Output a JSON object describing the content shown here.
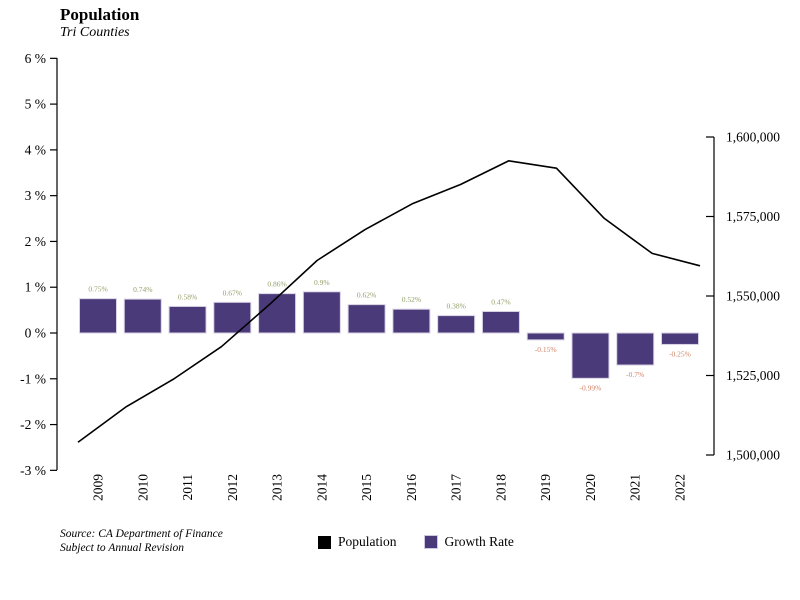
{
  "header": {
    "title": "Population",
    "subtitle": "Tri Counties"
  },
  "footer": {
    "source_line1": "Source: CA Department of Finance",
    "source_line2": "Subject to Annual Revision"
  },
  "legend": {
    "items": [
      {
        "label": "Population",
        "color": "#000000"
      },
      {
        "label": "Growth Rate",
        "color": "#4b3a7a"
      }
    ]
  },
  "chart_data": {
    "type": "combo",
    "title": "Population",
    "subtitle": "Tri Counties",
    "categories": [
      "2009",
      "2010",
      "2011",
      "2012",
      "2013",
      "2014",
      "2015",
      "2016",
      "2017",
      "2018",
      "2019",
      "2020",
      "2021",
      "2022"
    ],
    "series": [
      {
        "name": "Population",
        "type": "line",
        "axis": "right",
        "color": "#000000",
        "values": [
          1504000,
          1515100,
          1523900,
          1534100,
          1547300,
          1561200,
          1570900,
          1579100,
          1585100,
          1592500,
          1590200,
          1574400,
          1563400,
          1559500
        ]
      },
      {
        "name": "Growth Rate",
        "type": "bar",
        "axis": "left",
        "color": "#4b3a7a",
        "bar_border_color": "#d8d2e4",
        "values_pct": [
          0.75,
          0.74,
          0.58,
          0.67,
          0.86,
          0.9,
          0.62,
          0.52,
          0.38,
          0.47,
          -0.15,
          -0.99,
          -0.7,
          -0.25
        ],
        "labels": [
          "0.75%",
          "0.74%",
          "0.58%",
          "0.67%",
          "0.86%",
          "0.9%",
          "0.62%",
          "0.52%",
          "0.38%",
          "0.47%",
          "-0.15%",
          "-0.99%",
          "-0.7%",
          "-0.25%"
        ]
      }
    ],
    "left_axis": {
      "unit": "%",
      "range": [
        -3,
        6
      ],
      "tick_values": [
        6,
        5,
        4,
        3,
        2,
        1,
        0,
        -1,
        -2,
        -3
      ],
      "ticks": [
        "6 %",
        "5 %",
        "4 %",
        "3 %",
        "2 %",
        "1 %",
        "0 %",
        "-1 %",
        "-2 %",
        "-3 %"
      ]
    },
    "right_axis": {
      "range": [
        1500000,
        1600000
      ],
      "tick_values": [
        1600000,
        1575000,
        1550000,
        1525000,
        1500000
      ],
      "ticks": [
        "1,600,000",
        "1,575,000",
        "1,550,000",
        "1,525,000",
        "1,500,000"
      ]
    },
    "bar_label_colors": {
      "positive": "#93a06a",
      "negative": "#d08467"
    },
    "grid": false,
    "legend_position": "bottom"
  }
}
